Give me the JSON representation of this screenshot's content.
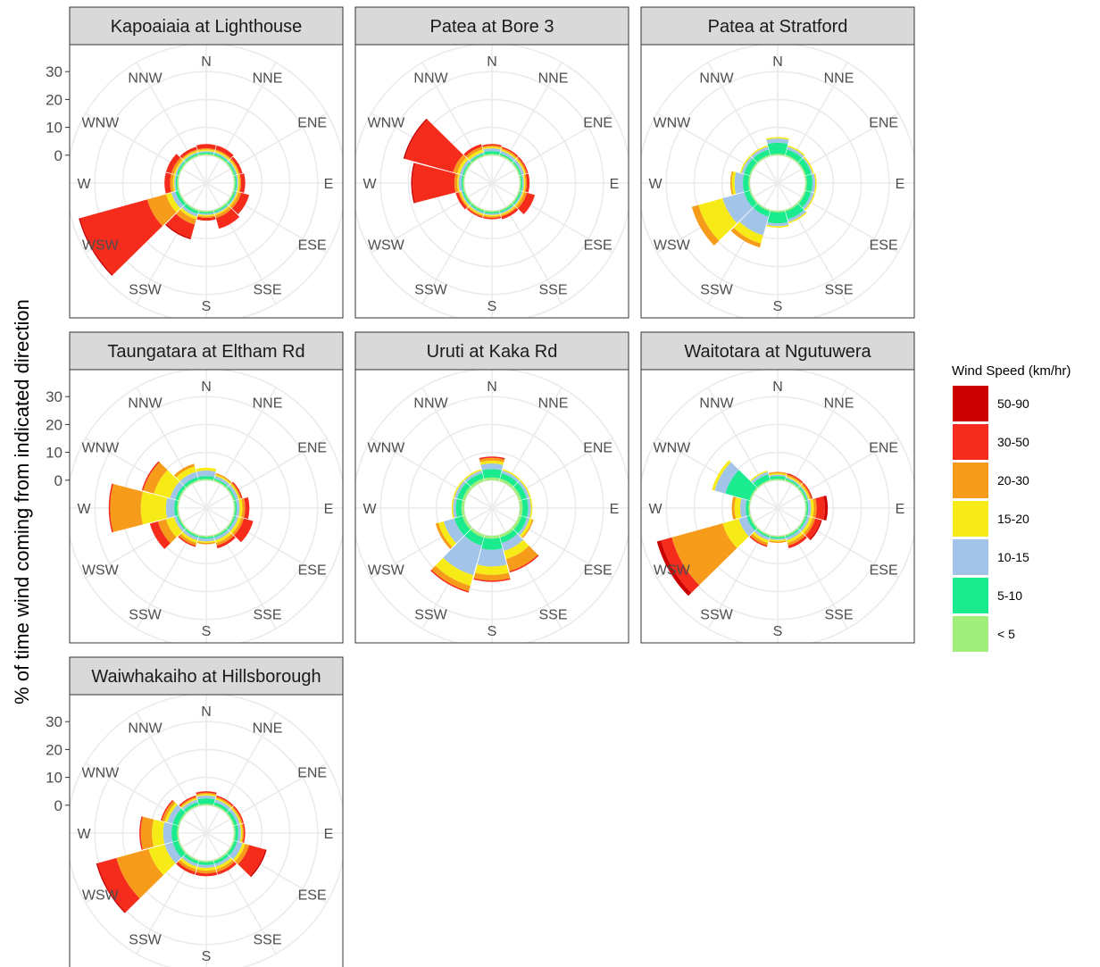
{
  "chart_data": {
    "type": "windrose",
    "ylabel": "% of time wind coming from indicated direction",
    "directions": [
      "N",
      "NNE",
      "ENE",
      "E",
      "ESE",
      "SSE",
      "S",
      "SSW",
      "WSW",
      "W",
      "WNW",
      "NNW"
    ],
    "direction_angles_deg": [
      0,
      30,
      60,
      90,
      120,
      150,
      180,
      210,
      240,
      270,
      300,
      330
    ],
    "radial_axis": {
      "min": -10,
      "max": 40,
      "ticks": [
        0,
        10,
        20,
        30
      ],
      "grid_rings": [
        -10,
        0,
        10,
        20,
        30,
        40
      ]
    },
    "legend": {
      "title": "Wind Speed (km/hr)",
      "placement": "right",
      "bins": [
        {
          "label": "50-90",
          "color": "#CC0000"
        },
        {
          "label": "30-50",
          "color": "#F52C1C"
        },
        {
          "label": "20-30",
          "color": "#F79C1A"
        },
        {
          "label": "15-20",
          "color": "#F7EB17"
        },
        {
          "label": "10-15",
          "color": "#A2C4E8"
        },
        {
          "label": "5-10",
          "color": "#1AEB8F"
        },
        {
          "label": "< 5",
          "color": "#A2EE7D"
        }
      ]
    },
    "bin_order_inner_to_outer": [
      "< 5",
      "5-10",
      "10-15",
      "15-20",
      "20-30",
      "30-50",
      "50-90"
    ],
    "panels": [
      {
        "title": "Kapoaiaia at Lighthouse",
        "values": [
          [
            0.5,
            0.5,
            0.5,
            0.5,
            0.5,
            1.5,
            0
          ],
          [
            0.5,
            0.5,
            0.5,
            0.5,
            0.5,
            1.5,
            0
          ],
          [
            0.5,
            0.5,
            0.5,
            0.5,
            0.5,
            1,
            0
          ],
          [
            0.5,
            0.5,
            0.5,
            0.5,
            0.5,
            1.5,
            0
          ],
          [
            0.5,
            0.5,
            0.5,
            0.5,
            1,
            3,
            0
          ],
          [
            0.5,
            0.5,
            0.5,
            0.5,
            1,
            4,
            0
          ],
          [
            0.5,
            0.5,
            0.5,
            0.5,
            0.5,
            1,
            0
          ],
          [
            0.5,
            1,
            1,
            1,
            2,
            5,
            0.5
          ],
          [
            0.5,
            1,
            1.5,
            2,
            7,
            25,
            0.5
          ],
          [
            0.5,
            0.5,
            0.5,
            0.5,
            1,
            2,
            0
          ],
          [
            0.5,
            0.5,
            0.5,
            0.5,
            1,
            2,
            0
          ],
          [
            0.5,
            0.5,
            0.5,
            0.5,
            0.5,
            1,
            0
          ]
        ]
      },
      {
        "title": "Patea at Bore 3",
        "values": [
          [
            0.5,
            1,
            1,
            0.5,
            0.5,
            0.5,
            0
          ],
          [
            0.5,
            0.5,
            1,
            0.5,
            0.5,
            0.5,
            0
          ],
          [
            0.5,
            0.5,
            1,
            0.5,
            0.5,
            0.5,
            0
          ],
          [
            0.5,
            0.5,
            0.5,
            0.5,
            0.5,
            1,
            0
          ],
          [
            0.5,
            0.5,
            0.5,
            0.5,
            1,
            3,
            0
          ],
          [
            0.5,
            0.5,
            0.5,
            0.5,
            0.5,
            1,
            0
          ],
          [
            0.5,
            0.5,
            0.5,
            0.5,
            0.5,
            0.5,
            0
          ],
          [
            0.5,
            0.5,
            0.5,
            0.5,
            0.5,
            0.5,
            0
          ],
          [
            0.5,
            0.5,
            0.5,
            0.5,
            0.5,
            1,
            0
          ],
          [
            0.5,
            0.5,
            1,
            0.5,
            1,
            15,
            0.5
          ],
          [
            0.5,
            0.5,
            1,
            1,
            1.5,
            18,
            0.5
          ],
          [
            0.5,
            0.5,
            0.5,
            1,
            1,
            1,
            0
          ]
        ]
      },
      {
        "title": "Patea at Stratford",
        "values": [
          [
            0.5,
            4,
            1.5,
            0.5,
            0,
            0,
            0
          ],
          [
            0.5,
            2,
            1,
            0.5,
            0,
            0,
            0
          ],
          [
            0.5,
            2,
            0.5,
            0.5,
            0,
            0,
            0
          ],
          [
            0.5,
            2,
            1,
            0.5,
            0,
            0,
            0
          ],
          [
            0.5,
            2,
            1,
            0.5,
            0,
            0,
            0
          ],
          [
            0.5,
            3,
            1,
            0.5,
            0,
            0,
            0
          ],
          [
            0.5,
            4,
            1,
            0.5,
            0,
            0,
            0
          ],
          [
            0.5,
            2,
            7,
            3,
            1.5,
            0,
            0
          ],
          [
            0.5,
            2,
            8,
            9,
            2.5,
            0,
            0
          ],
          [
            0.5,
            2,
            3,
            1,
            0.5,
            0,
            0
          ],
          [
            0.5,
            2,
            1,
            0.5,
            0,
            0,
            0
          ],
          [
            0.5,
            2,
            1,
            0.5,
            0,
            0,
            0
          ]
        ]
      },
      {
        "title": "Taungatara at Eltham Rd",
        "values": [
          [
            0.5,
            1,
            2,
            1,
            0,
            0,
            0
          ],
          [
            0.5,
            0.5,
            1,
            0.5,
            0.5,
            0,
            0
          ],
          [
            0.5,
            0.5,
            1,
            0.5,
            0.5,
            0.5,
            0
          ],
          [
            0.5,
            0.5,
            1,
            1,
            1,
            1.5,
            0
          ],
          [
            0.5,
            0.5,
            1,
            1,
            1,
            3.5,
            0
          ],
          [
            0.5,
            0.5,
            1,
            1,
            1,
            1,
            0
          ],
          [
            0.5,
            0.5,
            1,
            0.5,
            0.5,
            0,
            0
          ],
          [
            0.5,
            0.5,
            1,
            1,
            1,
            0.5,
            0
          ],
          [
            0.5,
            0.5,
            1,
            3,
            3,
            3,
            0
          ],
          [
            0.5,
            1,
            3,
            9,
            11,
            0.5,
            0
          ],
          [
            0.5,
            1,
            2,
            6,
            4,
            0.5,
            0
          ],
          [
            0.5,
            1,
            2,
            2,
            1,
            0,
            0
          ]
        ]
      },
      {
        "title": "Uruti at Kaka Rd",
        "values": [
          [
            1,
            3,
            2,
            1,
            1,
            0.5,
            0
          ],
          [
            1,
            2,
            1,
            0.5,
            0,
            0,
            0
          ],
          [
            1,
            2,
            1,
            0.5,
            0,
            0,
            0
          ],
          [
            1,
            2,
            1,
            0.5,
            0,
            0,
            0
          ],
          [
            1,
            2,
            1,
            1,
            0.5,
            0,
            0
          ],
          [
            1,
            2,
            3,
            3,
            4.5,
            0.5,
            0
          ],
          [
            1,
            4,
            6,
            3,
            2,
            0.5,
            0
          ],
          [
            1,
            3,
            11,
            4,
            2,
            0.5,
            0
          ],
          [
            1,
            3,
            4,
            2,
            1,
            0,
            0
          ],
          [
            1,
            2,
            1,
            0.5,
            0,
            0,
            0
          ],
          [
            1,
            2,
            1,
            0.5,
            0,
            0,
            0
          ],
          [
            1,
            2,
            1,
            0.5,
            0,
            0,
            0
          ]
        ]
      },
      {
        "title": "Waitotara at Ngutuwera",
        "values": [
          [
            0.5,
            1,
            0.5,
            0.5,
            0.5,
            0,
            0
          ],
          [
            0.5,
            0.5,
            0.5,
            0.5,
            0.5,
            0.5,
            0
          ],
          [
            0.5,
            0.5,
            0.5,
            0.5,
            0.5,
            0.5,
            0
          ],
          [
            0.5,
            0.5,
            1,
            1,
            1,
            3,
            1
          ],
          [
            0.5,
            0.5,
            1,
            1,
            1,
            2,
            0.5
          ],
          [
            0.5,
            0.5,
            1,
            1,
            1,
            1,
            0
          ],
          [
            0.5,
            0.5,
            0.5,
            0.5,
            0.5,
            0,
            0
          ],
          [
            0.5,
            0.5,
            1,
            1,
            1,
            0.5,
            0
          ],
          [
            0.5,
            1,
            3,
            6,
            19,
            4,
            1.5
          ],
          [
            0.5,
            1,
            2,
            2,
            1,
            0,
            0
          ],
          [
            0.5,
            9,
            4,
            1,
            0,
            0,
            0
          ],
          [
            0.5,
            2,
            1,
            0.5,
            0,
            0,
            0
          ]
        ]
      },
      {
        "title": "Waiwhakaiho at Hillsborough",
        "values": [
          [
            0.5,
            2,
            1,
            0.5,
            0.5,
            0.5,
            0
          ],
          [
            0.5,
            1,
            1,
            0.5,
            0.5,
            0.5,
            0
          ],
          [
            0.5,
            1,
            1,
            0.5,
            0.5,
            0.5,
            0
          ],
          [
            0.5,
            1,
            1,
            0.5,
            0.5,
            0.5,
            0
          ],
          [
            0.5,
            1,
            2,
            1,
            1.5,
            6,
            0.5
          ],
          [
            0.5,
            1,
            1,
            1,
            1,
            1,
            0
          ],
          [
            0.5,
            1,
            1,
            1,
            1,
            1,
            0
          ],
          [
            0.5,
            1,
            1,
            1,
            1,
            1,
            0
          ],
          [
            0.5,
            2,
            3,
            6,
            12,
            7,
            0.5
          ],
          [
            0.5,
            2,
            3,
            4,
            4,
            0.5,
            0
          ],
          [
            0.5,
            2,
            2,
            1,
            1,
            0.5,
            0
          ],
          [
            0.5,
            1,
            1,
            0.5,
            0.5,
            0.5,
            0
          ]
        ]
      }
    ]
  }
}
